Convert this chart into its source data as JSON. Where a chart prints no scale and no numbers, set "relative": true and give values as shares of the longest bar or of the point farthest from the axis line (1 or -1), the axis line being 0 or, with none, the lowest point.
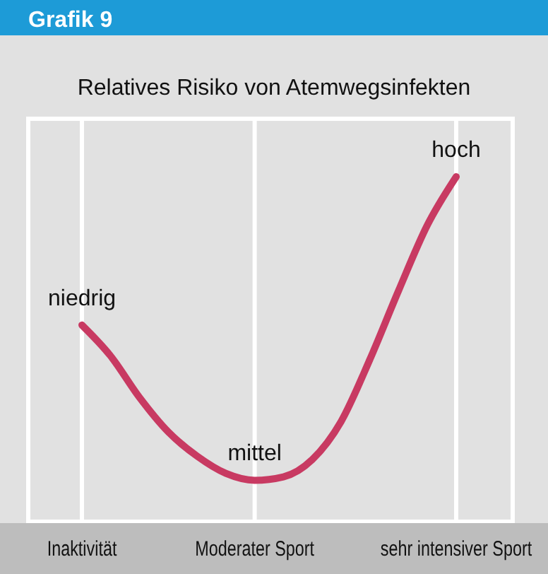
{
  "chart_data": {
    "type": "line",
    "title": "Relatives Risiko von Atemwegsinfekten",
    "relative": true,
    "annotations": [
      "Grafik 9",
      {
        "text": "niedrig",
        "x": "Inaktivität",
        "y": 0.57
      },
      {
        "text": "mittel",
        "x": "Moderater Sport",
        "y": 0.12
      },
      {
        "text": "hoch",
        "x": "sehr intensiver Sport",
        "y": 1
      }
    ],
    "categories": [
      "Inaktivität",
      null,
      null,
      null,
      null,
      null,
      "Moderater Sport",
      null,
      null,
      null,
      null,
      null,
      null,
      "sehr intensiver Sport"
    ],
    "grid": "x",
    "marker": "none",
    "line_style": "solid",
    "series": [
      {
        "color": "#c83a62",
        "values": [
          0.57,
          0.48,
          0.36,
          0.26,
          0.19,
          0.14,
          0.12,
          0.13,
          0.18,
          0.29,
          0.47,
          0.67,
          0.86,
          1
        ]
      }
    ]
  }
}
